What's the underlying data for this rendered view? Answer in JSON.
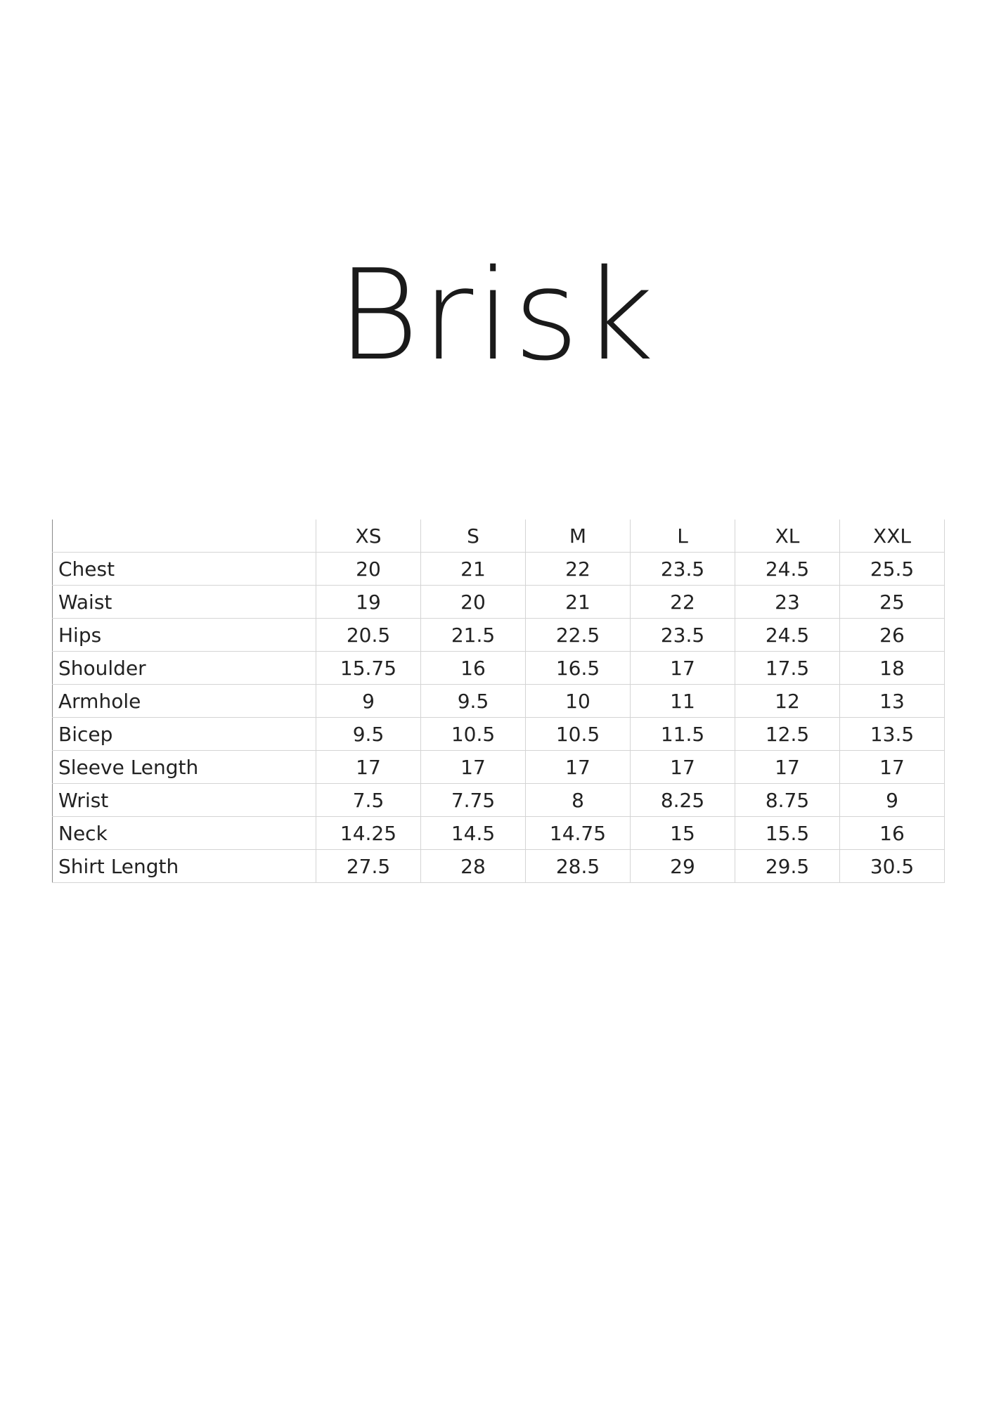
{
  "header": {
    "title": "Brisk"
  },
  "table": {
    "columns": [
      "XS",
      "S",
      "M",
      "L",
      "XL",
      "XXL"
    ],
    "rows": [
      {
        "label": "Chest",
        "values": [
          20,
          21,
          22,
          23.5,
          24.5,
          25.5
        ]
      },
      {
        "label": "Waist",
        "values": [
          19,
          20,
          21,
          22,
          23,
          25
        ]
      },
      {
        "label": "Hips",
        "values": [
          20.5,
          21.5,
          22.5,
          23.5,
          24.5,
          26
        ]
      },
      {
        "label": "Shoulder",
        "values": [
          15.75,
          16,
          16.5,
          17,
          17.5,
          18
        ]
      },
      {
        "label": "Armhole",
        "values": [
          9,
          9.5,
          10,
          11,
          12,
          13
        ]
      },
      {
        "label": "Bicep",
        "values": [
          9.5,
          10.5,
          10.5,
          11.5,
          12.5,
          13.5
        ]
      },
      {
        "label": "Sleeve Length",
        "values": [
          17,
          17,
          17,
          17,
          17,
          17
        ]
      },
      {
        "label": "Wrist",
        "values": [
          7.5,
          7.75,
          8,
          8.25,
          8.75,
          9
        ]
      },
      {
        "label": "Neck",
        "values": [
          14.25,
          14.5,
          14.75,
          15,
          15.5,
          16
        ]
      },
      {
        "label": "Shirt Length",
        "values": [
          27.5,
          28,
          28.5,
          29,
          29.5,
          30.5
        ]
      }
    ]
  }
}
